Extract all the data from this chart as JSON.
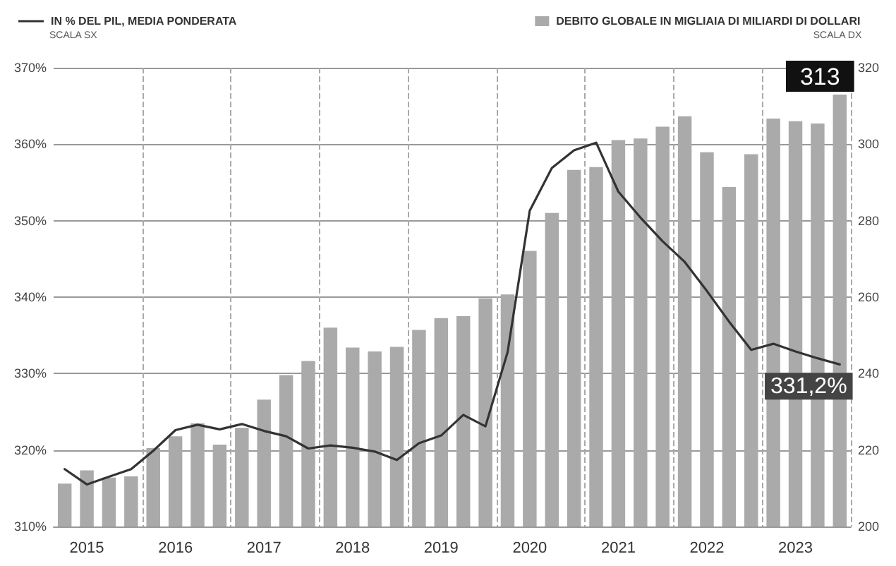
{
  "chart_data": {
    "type": "bar",
    "categories": [
      null,
      "2015",
      null,
      null,
      null,
      "2016",
      null,
      null,
      null,
      "2017",
      null,
      null,
      null,
      "2018",
      null,
      null,
      null,
      "2019",
      null,
      null,
      null,
      "2020",
      null,
      null,
      null,
      "2021",
      null,
      null,
      null,
      "2022",
      null,
      null,
      null,
      "2023",
      null,
      null
    ],
    "series": [
      {
        "name": "DEBITO GLOBALE IN MIGLIAIA DI MILIARDI DI DOLLARI",
        "type": "bar",
        "axis": "y2",
        "color": "#aaaaaa",
        "values": [
          211.2,
          214.7,
          212.8,
          213.1,
          220.5,
          223.6,
          227,
          221.4,
          225.8,
          233.2,
          239.6,
          243.3,
          252,
          246.8,
          245.8,
          247,
          251.4,
          254.5,
          255,
          259.7,
          260.7,
          272.1,
          282,
          293.3,
          294,
          301.1,
          301.5,
          304.6,
          307.3,
          297.9,
          288.8,
          297.4,
          306.7,
          306,
          305.4,
          313
        ],
        "value_labels": [
          null,
          null,
          null,
          null,
          null,
          null,
          null,
          null,
          null,
          null,
          null,
          null,
          null,
          null,
          null,
          null,
          null,
          null,
          null,
          null,
          null,
          null,
          null,
          null,
          null,
          null,
          null,
          null,
          null,
          null,
          null,
          null,
          null,
          null,
          null,
          "313"
        ]
      },
      {
        "name": "IN % DEL PIL, MEDIA PONDERATA",
        "type": "line",
        "axis": "y",
        "color": "#333333",
        "values": [
          317.5,
          315.5,
          316.5,
          317.5,
          319.9,
          322.6,
          323.3,
          322.7,
          323.4,
          322.5,
          321.8,
          320.2,
          320.6,
          320.3,
          319.8,
          318.7,
          320.9,
          321.9,
          324.6,
          323.1,
          332.8,
          351.3,
          356.9,
          359.2,
          360.2,
          353.8,
          350.4,
          347.3,
          344.6,
          340.8,
          336.8,
          333.1,
          333.9,
          332.9,
          332,
          331.2
        ],
        "value_labels": [
          null,
          null,
          null,
          null,
          null,
          null,
          null,
          null,
          null,
          null,
          null,
          null,
          null,
          null,
          null,
          null,
          null,
          null,
          null,
          null,
          null,
          null,
          null,
          null,
          null,
          null,
          null,
          null,
          null,
          null,
          null,
          null,
          null,
          null,
          null,
          "331,2%"
        ]
      }
    ],
    "ylim": [
      310,
      370
    ],
    "yticks": [
      {
        "value": 310,
        "label": "310%"
      },
      {
        "value": 320,
        "label": "320%"
      },
      {
        "value": 330,
        "label": "330%"
      },
      {
        "value": 340,
        "label": "340%"
      },
      {
        "value": 350,
        "label": "350%"
      },
      {
        "value": 360,
        "label": "360%"
      },
      {
        "value": 370,
        "label": "370%"
      }
    ],
    "y2lim": [
      200,
      320
    ],
    "y2ticks": [
      200,
      220,
      240,
      260,
      280,
      300,
      320
    ],
    "annotations": [
      "SCALA SX",
      "SCALA DX"
    ],
    "grid": true,
    "legend": "top",
    "marker": "none",
    "line_style": "solid"
  }
}
